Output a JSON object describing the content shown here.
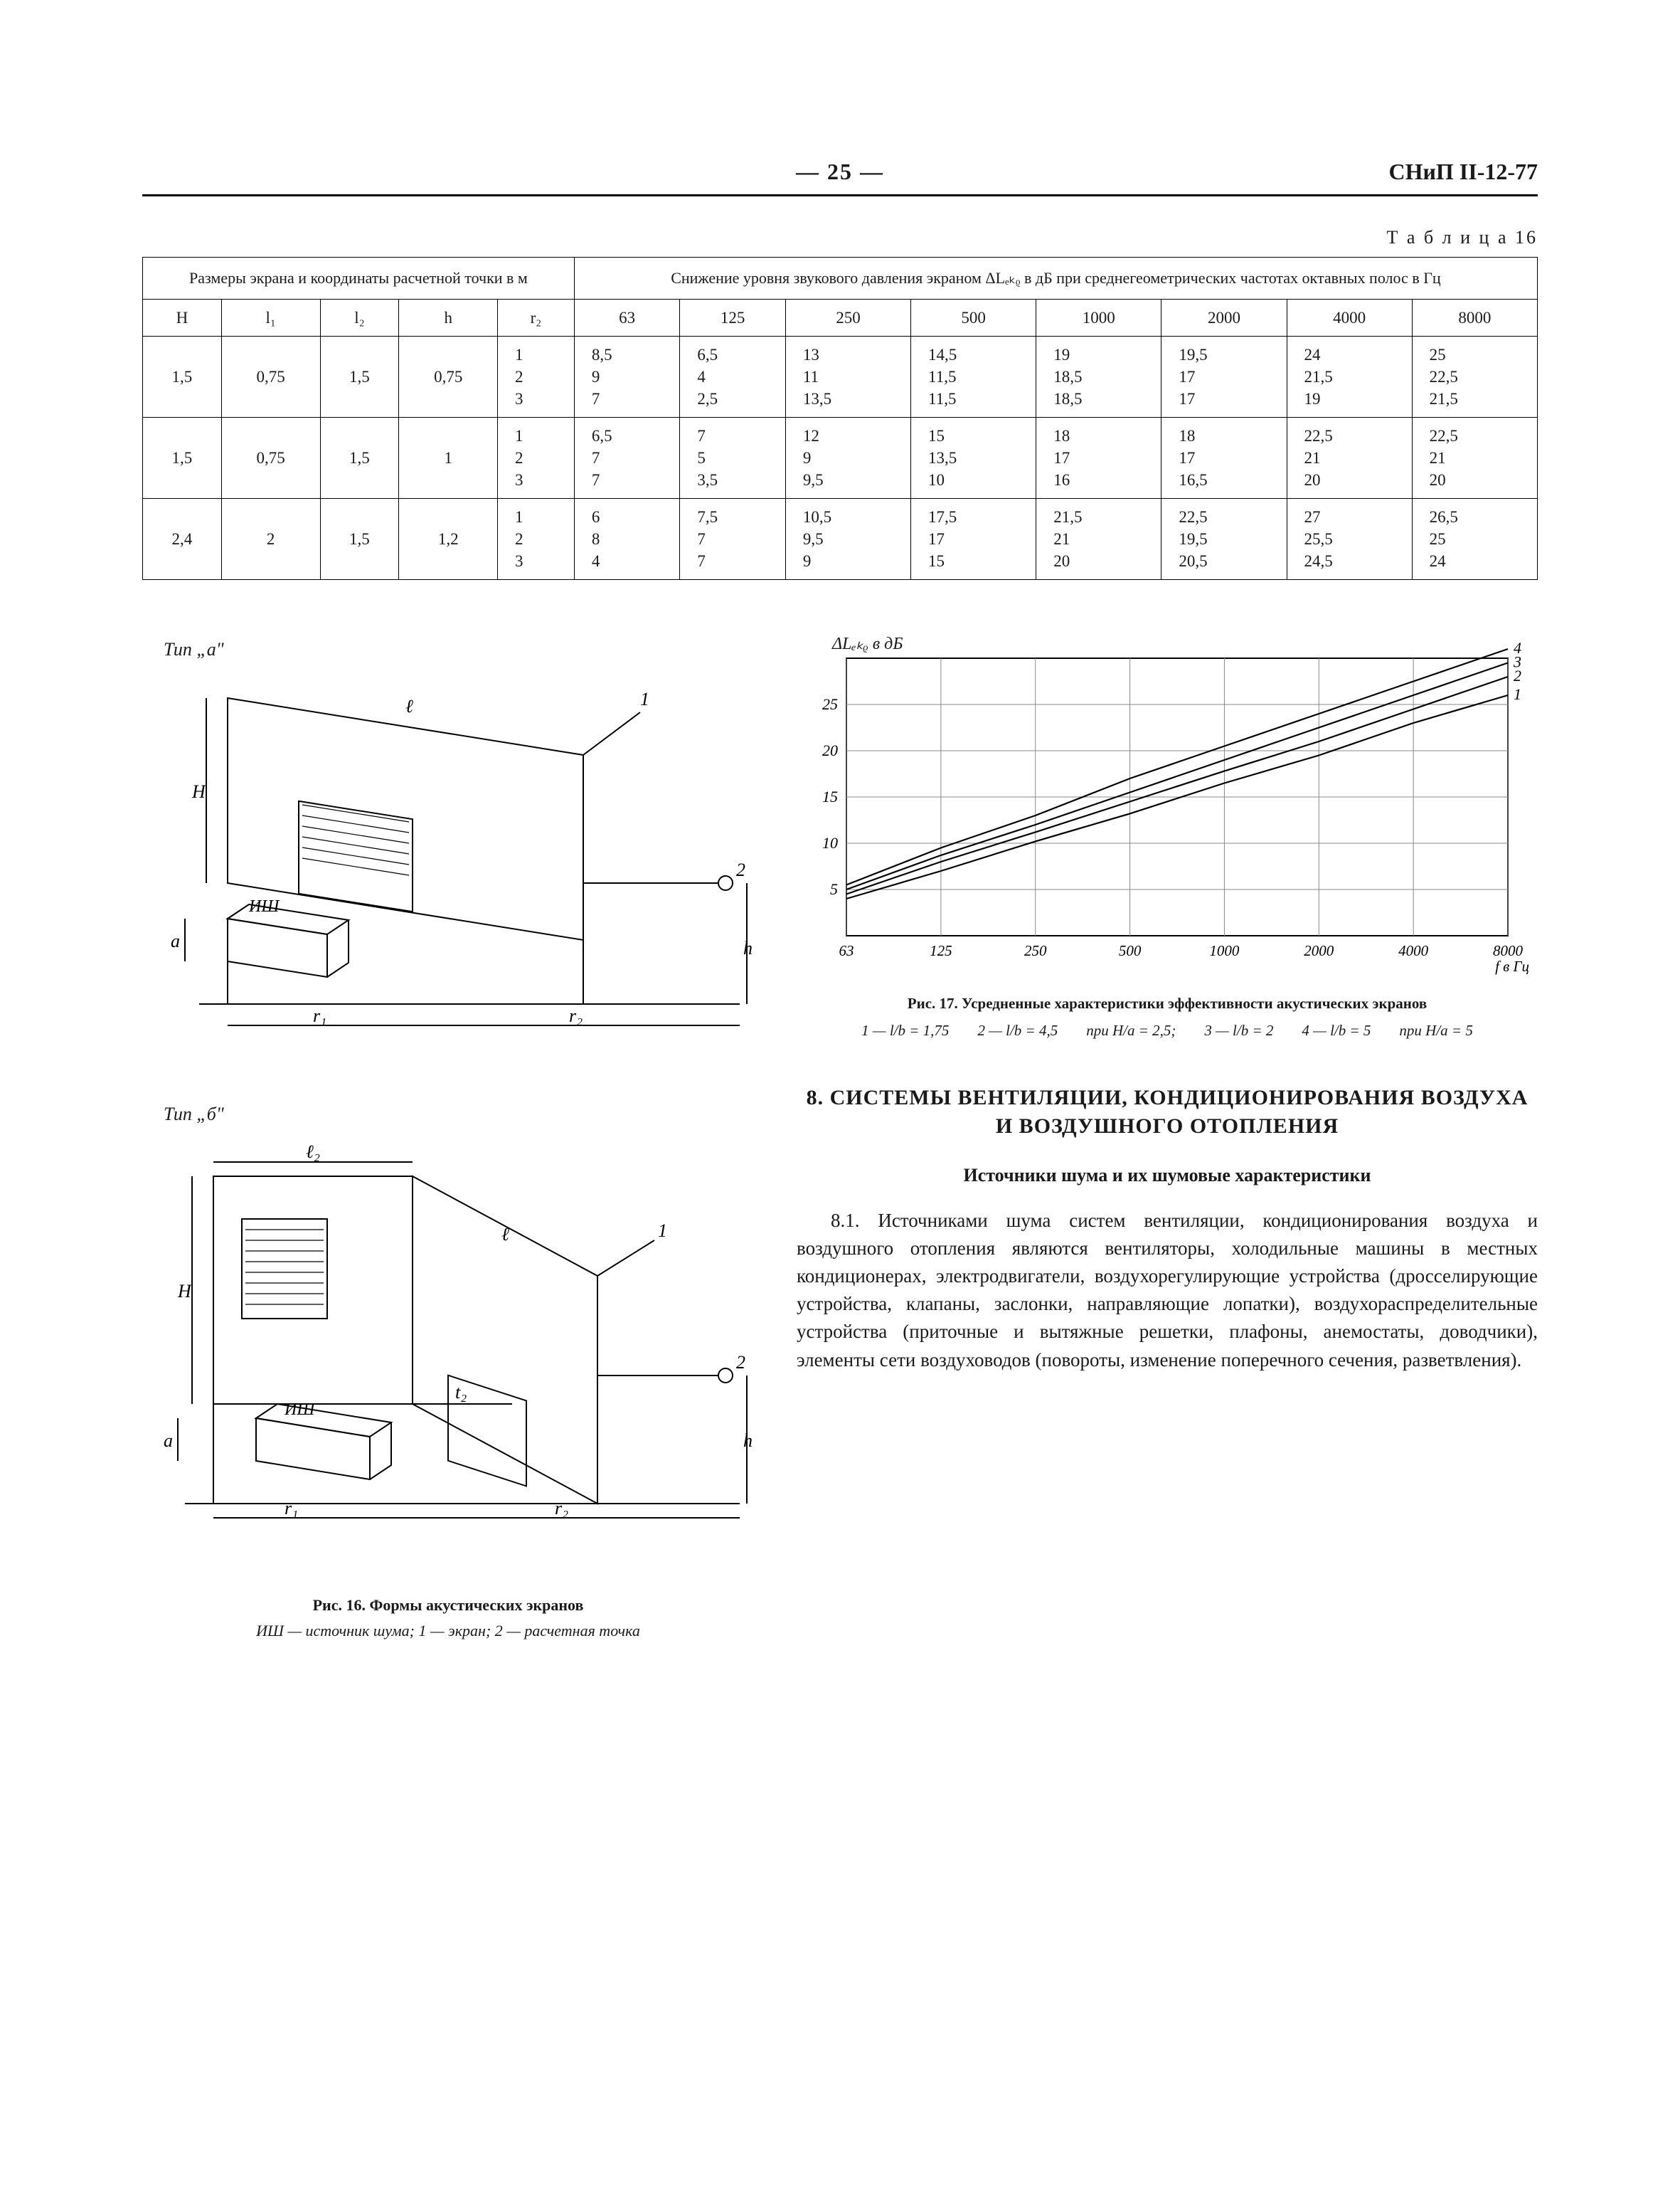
{
  "header": {
    "page_marker": "— 25 —",
    "doc_code": "СНиП II-12-77"
  },
  "table16": {
    "label": "Т а б л и ц а 16",
    "group_left": "Размеры экрана и координаты расчетной точки в м",
    "group_right": "Снижение уровня звукового давления экраном ΔLₑₖᵨ в дБ при среднегеометрических частотах октавных полос в Гц",
    "cols_left": [
      "H",
      "l₁",
      "l₂",
      "h",
      "r₂"
    ],
    "cols_right": [
      "63",
      "125",
      "250",
      "500",
      "1000",
      "2000",
      "4000",
      "8000"
    ],
    "rows": [
      {
        "H": "1,5",
        "l1": "0,75",
        "l2": "1,5",
        "h": "0,75",
        "r2": "1\n2\n3",
        "vals": [
          "8,5\n9\n7",
          "6,5\n4\n2,5",
          "13\n11\n13,5",
          "14,5\n11,5\n11,5",
          "19\n18,5\n18,5",
          "19,5\n17\n17",
          "24\n21,5\n19",
          "25\n22,5\n21,5"
        ]
      },
      {
        "H": "1,5",
        "l1": "0,75",
        "l2": "1,5",
        "h": "1",
        "r2": "1\n2\n3",
        "vals": [
          "6,5\n7\n7",
          "7\n5\n3,5",
          "12\n9\n9,5",
          "15\n13,5\n10",
          "18\n17\n16",
          "18\n17\n16,5",
          "22,5\n21\n20",
          "22,5\n21\n20"
        ]
      },
      {
        "H": "2,4",
        "l1": "2",
        "l2": "1,5",
        "h": "1,2",
        "r2": "1\n2\n3",
        "vals": [
          "6\n8\n4",
          "7,5\n7\n7",
          "10,5\n9,5\n9",
          "17,5\n17\n15",
          "21,5\n21\n20",
          "22,5\n19,5\n20,5",
          "27\n25,5\n24,5",
          "26,5\n25\n24"
        ]
      }
    ]
  },
  "fig16": {
    "type_a_label": "Тип „а\"",
    "type_b_label": "Тип „б\"",
    "caption_bold": "Рис. 16. Формы акустических экранов",
    "caption_thin": "ИШ — источник шума; 1 — экран; 2 — расчетная точка",
    "labels": {
      "l": "ℓ",
      "l1": "ℓ₁",
      "l2": "ℓ₂",
      "r1": "r₁",
      "r2": "r₂",
      "H": "H",
      "a": "a",
      "h": "h",
      "ish": "ИШ",
      "one": "1",
      "two": "2"
    }
  },
  "fig17": {
    "type": "line",
    "axis_label": "ΔLₑₖᵨ в дБ",
    "x_ticks": [
      "63",
      "125",
      "250",
      "500",
      "1000",
      "2000",
      "4000",
      "8000"
    ],
    "x_axis_unit": "f в Гц",
    "y_ticks": [
      5,
      10,
      15,
      20,
      25
    ],
    "ylim": [
      0,
      30
    ],
    "grid_color": "#888888",
    "line_color": "#000000",
    "background": "#ffffff",
    "series": [
      {
        "label": "1",
        "y": [
          4,
          7,
          10.2,
          13.2,
          16.5,
          19.5,
          23,
          26
        ]
      },
      {
        "label": "2",
        "y": [
          4.5,
          8,
          11.2,
          14.5,
          17.8,
          21,
          24.5,
          28
        ]
      },
      {
        "label": "3",
        "y": [
          5,
          8.7,
          12,
          15.5,
          19,
          22.5,
          26,
          29.5
        ]
      },
      {
        "label": "4",
        "y": [
          5.5,
          9.5,
          13,
          17,
          20.5,
          24,
          27.5,
          31
        ]
      }
    ],
    "caption": "Рис. 17. Усредненные характеристики эффективности акустических экранов",
    "legend_items": [
      "1 — l/b = 1,75",
      "2 — l/b = 4,5",
      "при H/a = 2,5;",
      "3 — l/b = 2",
      "4 — l/b = 5",
      "при H/a = 5"
    ]
  },
  "section8": {
    "title": "8. СИСТЕМЫ ВЕНТИЛЯЦИИ, КОНДИЦИОНИРОВАНИЯ ВОЗДУХА И ВОЗДУШНОГО ОТОПЛЕНИЯ",
    "subtitle": "Источники шума и их шумовые характеристики",
    "para": "8.1. Источниками шума систем вентиляции, кондиционирования воздуха и воздушного отопления являются вентиляторы, холодильные машины в местных кондиционерах, электродвигатели, воздухорегулирующие устройства (дросселирующие устройства, клапаны, заслонки, направляющие лопатки), воздухораспределительные устройства (приточные и вытяжные решетки, плафоны, анемостаты, доводчики), элементы сети воздуховодов (повороты, изменение поперечного сечения, разветвления)."
  }
}
